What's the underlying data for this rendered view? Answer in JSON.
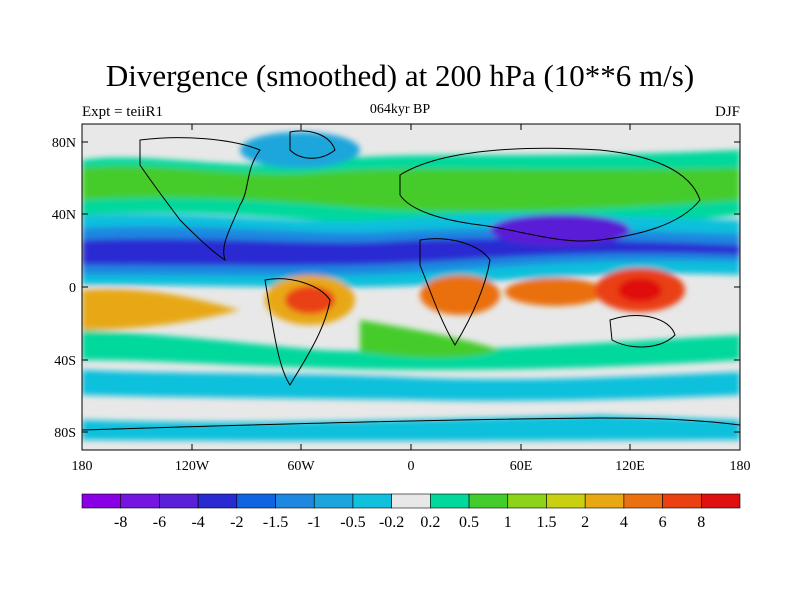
{
  "title": "Divergence (smoothed) at 200 hPa (10**6 m/s)",
  "left_label": "Expt = teiiR1",
  "center_label": "064kyr BP",
  "right_label": "DJF",
  "lat_ticks": [
    "80N",
    "40N",
    "0",
    "40S",
    "80S"
  ],
  "lon_ticks": [
    "180",
    "120W",
    "60W",
    "0",
    "60E",
    "120E",
    "180"
  ],
  "colorbar": {
    "labels": [
      "-8",
      "-6",
      "-4",
      "-2",
      "-1.5",
      "-1",
      "-0.5",
      "-0.2",
      "0.2",
      "0.5",
      "1",
      "1.5",
      "2",
      "4",
      "6",
      "8"
    ],
    "colors": [
      "#8a00e6",
      "#7515e0",
      "#5a1fd6",
      "#2a2ad2",
      "#1064e0",
      "#1e88e0",
      "#1aa6dc",
      "#10c0dc",
      "#e8e8e8",
      "#00d89c",
      "#44cc2c",
      "#8cd41a",
      "#c8d010",
      "#e8a814",
      "#ea7010",
      "#ea4012",
      "#e01010"
    ]
  }
}
